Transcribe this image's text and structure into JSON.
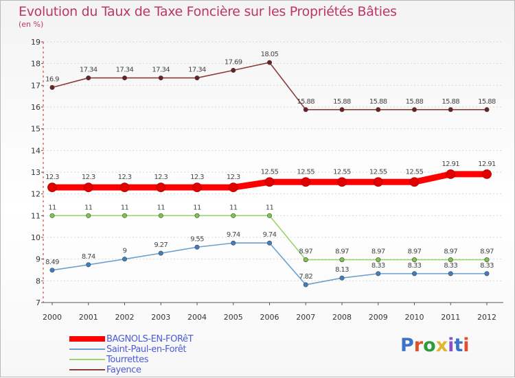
{
  "header": {
    "title": "Evolution du Taux de Taxe Foncière sur les Propriétés Bâties",
    "unit": "(en %)"
  },
  "logo": {
    "text": "Proxiti",
    "colors": [
      "#3b73c8",
      "#e1502a",
      "#2a9c3b",
      "#e3b52a",
      "#8a4fc9",
      "#3b73c8",
      "#e1502a"
    ]
  },
  "chart_data": {
    "type": "line",
    "title": "Evolution du Taux de Taxe Foncière sur les Propriétés Bâties",
    "ylabel": "(en %)",
    "xlabel": "",
    "ylim": [
      7,
      19
    ],
    "yticks": [
      7,
      8,
      9,
      10,
      11,
      12,
      13,
      14,
      15,
      16,
      17,
      18,
      19
    ],
    "categories": [
      "2000",
      "2001",
      "2002",
      "2003",
      "2004",
      "2005",
      "2006",
      "2007",
      "2008",
      "2009",
      "2010",
      "2011",
      "2012"
    ],
    "series": [
      {
        "name": "BAGNOLS-EN-FORêT",
        "color": "#ff0000",
        "marker": "#e00000",
        "emphasis": true,
        "values": [
          12.3,
          12.3,
          12.3,
          12.3,
          12.3,
          12.3,
          12.55,
          12.55,
          12.55,
          12.55,
          12.55,
          12.91,
          12.91
        ],
        "labels": [
          "12.3",
          "12.3",
          "12.3",
          "12.3",
          "12.3",
          "12.3",
          "12.55",
          "12.55",
          "12.55",
          "12.55",
          "12.55",
          "12.91",
          "12.91"
        ]
      },
      {
        "name": "Saint-Paul-en-Forêt",
        "color": "#6a9fcf",
        "marker": "#3f7fbf",
        "emphasis": false,
        "values": [
          8.49,
          8.74,
          9,
          9.27,
          9.55,
          9.74,
          9.74,
          7.82,
          8.13,
          8.33,
          8.33,
          8.33,
          8.33
        ],
        "labels": [
          "8.49",
          "8.74",
          "9",
          "9.27",
          "9.55",
          "9.74",
          "9.74",
          "7.82",
          "8.13",
          "8.33",
          "8.33",
          "8.33",
          "8.33"
        ]
      },
      {
        "name": "Tourrettes",
        "color": "#9ad46a",
        "marker": "#7cc44a",
        "emphasis": false,
        "values": [
          11,
          11,
          11,
          11,
          11,
          11,
          11,
          8.97,
          8.97,
          8.97,
          8.97,
          8.97,
          8.97
        ],
        "labels": [
          "11",
          "11",
          "11",
          "11",
          "11",
          "11",
          "11",
          "8.97",
          "8.97",
          "8.97",
          "8.97",
          "8.97",
          "8.97"
        ]
      },
      {
        "name": "Fayence",
        "color": "#8a3b3b",
        "marker": "#6e1f1f",
        "emphasis": false,
        "values": [
          16.9,
          17.34,
          17.34,
          17.34,
          17.34,
          17.69,
          18.05,
          15.88,
          15.88,
          15.88,
          15.88,
          15.88,
          15.88
        ],
        "labels": [
          "16.9",
          "17.34",
          "17.34",
          "17.34",
          "17.34",
          "17.69",
          "18.05",
          "15.88",
          "15.88",
          "15.88",
          "15.88",
          "15.88",
          "15.88"
        ]
      }
    ],
    "grid": true,
    "legend": "bottom-left"
  }
}
